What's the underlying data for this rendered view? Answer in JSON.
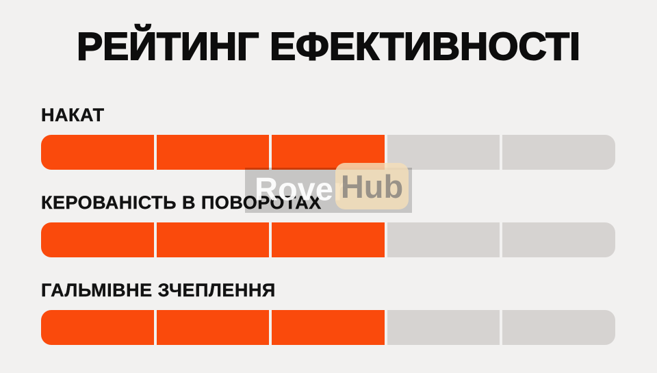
{
  "page": {
    "title": "РЕЙТИНГ ЕФЕКТИВНОСТІ",
    "background": "#F2F1F0"
  },
  "chart_data": {
    "type": "bar",
    "title": "РЕЙТИНГ ЕФЕКТИВНОСТІ",
    "categories": [
      "НАКАТ",
      "КЕРОВАНІСТЬ В ПОВОРОТАХ",
      "ГАЛЬМІВНЕ ЗЧЕПЛЕННЯ"
    ],
    "values": [
      3,
      3,
      3
    ],
    "value_max": 5,
    "segments_total": 5,
    "orientation": "horizontal",
    "legend": false,
    "grid": false,
    "colors": {
      "filled": "#FA4A0C",
      "empty": "#D6D3D1",
      "label_text": "#121212",
      "title_text": "#0D0D0D",
      "background": "#F2F1F0"
    }
  },
  "ratings": [
    {
      "label": "НАКАТ",
      "value": 3,
      "max": 5
    },
    {
      "label": "КЕРОВАНІСТЬ В ПОВОРОТАХ",
      "value": 3,
      "max": 5
    },
    {
      "label": "ГАЛЬМІВНЕ ЗЧЕПЛЕННЯ",
      "value": 3,
      "max": 5
    }
  ],
  "watermark": {
    "part1": "Rover",
    "part2": "Hub"
  }
}
